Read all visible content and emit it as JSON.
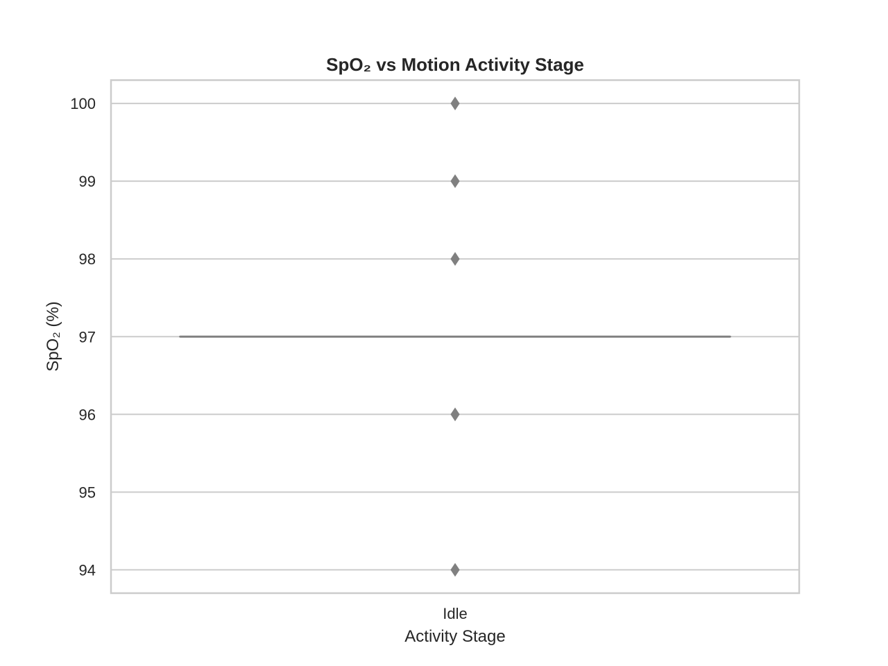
{
  "chart_data": {
    "type": "box",
    "title": "SpO₂ vs Motion Activity Stage",
    "xlabel": "Activity Stage",
    "ylabel": "SpO₂ (%)",
    "categories": [
      "Idle"
    ],
    "boxes": [
      {
        "category": "Idle",
        "q1": 97,
        "median": 97,
        "q3": 97,
        "whisker_low": 97,
        "whisker_high": 97,
        "outliers": [
          100,
          99,
          98,
          96,
          94
        ]
      }
    ],
    "ylim": [
      93.7,
      100.3
    ],
    "yticks": [
      94,
      95,
      96,
      97,
      98,
      99,
      100
    ],
    "grid": true,
    "colors": {
      "box": "#808080",
      "grid": "#cccccc",
      "frame": "#cccccc",
      "text": "#262626"
    }
  }
}
